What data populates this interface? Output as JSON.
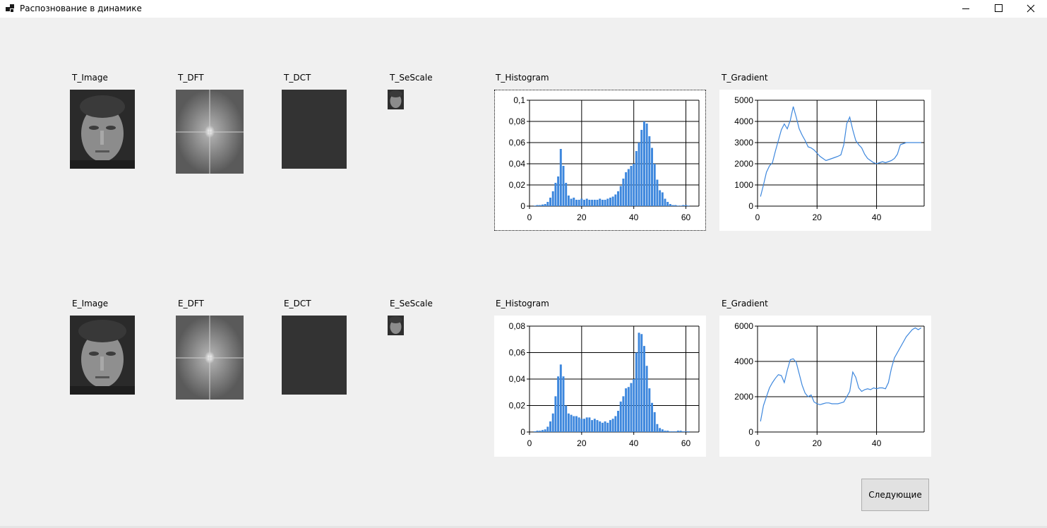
{
  "window": {
    "title": "Распознование в динамике"
  },
  "labels": {
    "t_image": "T_Image",
    "t_dft": "T_DFT",
    "t_dct": "T_DCT",
    "t_sescale": "T_SeScale",
    "t_histogram": "T_Histogram",
    "t_gradient": "T_Gradient",
    "e_image": "E_Image",
    "e_dft": "E_DFT",
    "e_dct": "E_DCT",
    "e_sescale": "E_SeScale",
    "e_histogram": "E_Histogram",
    "e_gradient": "E_Gradient"
  },
  "buttons": {
    "next": "Следующие"
  },
  "colors": {
    "series": "#3d87dd",
    "dct_fill": "#333333",
    "window_bg": "#f0f0f0"
  },
  "chart_data": [
    {
      "id": "t_histogram",
      "type": "bar",
      "xlim": [
        0,
        65
      ],
      "ylim": [
        0,
        0.1
      ],
      "xticks": [
        0,
        20,
        40,
        60
      ],
      "yticks": [
        0,
        0.02,
        0.04,
        0.06,
        0.08,
        0.1
      ],
      "ytick_labels": [
        "0",
        "0,02",
        "0,04",
        "0,06",
        "0,08",
        "0,1"
      ],
      "xtick_labels": [
        "0",
        "20",
        "40",
        "60"
      ],
      "grid": true,
      "x": [
        2,
        3,
        4,
        5,
        6,
        7,
        8,
        9,
        10,
        11,
        12,
        13,
        14,
        15,
        16,
        17,
        18,
        19,
        20,
        21,
        22,
        23,
        24,
        25,
        26,
        27,
        28,
        29,
        30,
        31,
        32,
        33,
        34,
        35,
        36,
        37,
        38,
        39,
        40,
        41,
        42,
        43,
        44,
        45,
        46,
        47,
        48,
        49,
        50,
        51,
        52,
        53,
        54,
        55,
        56,
        57,
        58,
        59,
        60,
        61
      ],
      "values": [
        0.0005,
        0.001,
        0.001,
        0.0015,
        0.002,
        0.004,
        0.008,
        0.014,
        0.022,
        0.028,
        0.054,
        0.038,
        0.022,
        0.01,
        0.007,
        0.008,
        0.006,
        0.006,
        0.007,
        0.006,
        0.007,
        0.006,
        0.006,
        0.006,
        0.006,
        0.007,
        0.006,
        0.006,
        0.007,
        0.008,
        0.009,
        0.011,
        0.014,
        0.019,
        0.026,
        0.032,
        0.035,
        0.038,
        0.04,
        0.052,
        0.06,
        0.072,
        0.08,
        0.078,
        0.066,
        0.055,
        0.04,
        0.025,
        0.015,
        0.013,
        0.007,
        0.004,
        0.002,
        0.001,
        0.001,
        0.0005,
        0.0005,
        0.001,
        0.001,
        0.0005
      ]
    },
    {
      "id": "t_gradient",
      "type": "line",
      "xlim": [
        0,
        56
      ],
      "ylim": [
        0,
        5000
      ],
      "xticks": [
        0,
        20,
        40
      ],
      "yticks": [
        0,
        1000,
        2000,
        3000,
        4000,
        5000
      ],
      "xtick_labels": [
        "0",
        "20",
        "40"
      ],
      "ytick_labels": [
        "0",
        "1000",
        "2000",
        "3000",
        "4000",
        "5000"
      ],
      "grid": true,
      "x": [
        1,
        2,
        3,
        4,
        5,
        6,
        7,
        8,
        9,
        10,
        11,
        12,
        13,
        14,
        15,
        16,
        17,
        18,
        19,
        20,
        21,
        22,
        23,
        24,
        25,
        26,
        27,
        28,
        29,
        30,
        31,
        32,
        33,
        34,
        35,
        36,
        37,
        38,
        39,
        40,
        41,
        42,
        43,
        44,
        45,
        46,
        47,
        48,
        49,
        50,
        51,
        52,
        53,
        54,
        55
      ],
      "values": [
        450,
        1000,
        1600,
        1900,
        2050,
        2600,
        3100,
        3600,
        3880,
        3650,
        4050,
        4700,
        4200,
        3650,
        3350,
        3100,
        2800,
        2750,
        2650,
        2500,
        2350,
        2250,
        2150,
        2200,
        2250,
        2300,
        2350,
        2420,
        2900,
        3900,
        4200,
        3600,
        3100,
        2900,
        2750,
        2450,
        2250,
        2150,
        2050,
        2000,
        2050,
        2100,
        2050,
        2100,
        2150,
        2250,
        2450,
        2900,
        2950,
        3000,
        3000,
        3000,
        3000,
        3000,
        3000
      ]
    },
    {
      "id": "e_histogram",
      "type": "bar",
      "xlim": [
        0,
        65
      ],
      "ylim": [
        0,
        0.08
      ],
      "xticks": [
        0,
        20,
        40,
        60
      ],
      "yticks": [
        0,
        0.02,
        0.04,
        0.06,
        0.08
      ],
      "ytick_labels": [
        "0",
        "0,02",
        "0,04",
        "0,06",
        "0,08"
      ],
      "xtick_labels": [
        "0",
        "20",
        "40",
        "60"
      ],
      "grid": true,
      "x": [
        2,
        3,
        4,
        5,
        6,
        7,
        8,
        9,
        10,
        11,
        12,
        13,
        14,
        15,
        16,
        17,
        18,
        19,
        20,
        21,
        22,
        23,
        24,
        25,
        26,
        27,
        28,
        29,
        30,
        31,
        32,
        33,
        34,
        35,
        36,
        37,
        38,
        39,
        40,
        41,
        42,
        43,
        44,
        45,
        46,
        47,
        48,
        49,
        50,
        51,
        52,
        53,
        54,
        55,
        56,
        57,
        58,
        59,
        60,
        61
      ],
      "values": [
        0.0005,
        0.001,
        0.001,
        0.0015,
        0.002,
        0.004,
        0.008,
        0.014,
        0.027,
        0.042,
        0.051,
        0.042,
        0.02,
        0.014,
        0.013,
        0.012,
        0.012,
        0.011,
        0.01,
        0.01,
        0.011,
        0.011,
        0.009,
        0.01,
        0.009,
        0.008,
        0.007,
        0.008,
        0.007,
        0.009,
        0.01,
        0.012,
        0.016,
        0.023,
        0.027,
        0.033,
        0.034,
        0.037,
        0.04,
        0.06,
        0.075,
        0.074,
        0.065,
        0.05,
        0.033,
        0.022,
        0.015,
        0.006,
        0.003,
        0.002,
        0.001,
        0.001,
        0.0005,
        0.0005,
        0.0005,
        0.001,
        0.001,
        0.0005,
        0.0005,
        0.0005
      ]
    },
    {
      "id": "e_gradient",
      "type": "line",
      "xlim": [
        0,
        56
      ],
      "ylim": [
        0,
        6000
      ],
      "xticks": [
        0,
        20,
        40
      ],
      "yticks": [
        0,
        2000,
        4000,
        6000
      ],
      "xtick_labels": [
        "0",
        "20",
        "40"
      ],
      "ytick_labels": [
        "0",
        "2000",
        "4000",
        "6000"
      ],
      "grid": true,
      "x": [
        1,
        2,
        3,
        4,
        5,
        6,
        7,
        8,
        9,
        10,
        11,
        12,
        13,
        14,
        15,
        16,
        17,
        18,
        19,
        20,
        21,
        22,
        23,
        24,
        25,
        26,
        27,
        28,
        29,
        30,
        31,
        32,
        33,
        34,
        35,
        36,
        37,
        38,
        39,
        40,
        41,
        42,
        43,
        44,
        45,
        46,
        47,
        48,
        49,
        50,
        51,
        52,
        53,
        54,
        55
      ],
      "values": [
        600,
        1500,
        2000,
        2500,
        2800,
        3050,
        3250,
        3200,
        2800,
        3500,
        4100,
        4150,
        3950,
        3300,
        2650,
        2200,
        2000,
        2100,
        1700,
        1600,
        1550,
        1600,
        1650,
        1650,
        1600,
        1600,
        1600,
        1650,
        1700,
        2000,
        2300,
        3400,
        3100,
        2500,
        2300,
        2400,
        2450,
        2400,
        2500,
        2450,
        2500,
        2500,
        2450,
        2800,
        3600,
        4200,
        4500,
        4800,
        5100,
        5400,
        5600,
        5800,
        5900,
        5800,
        5900
      ]
    }
  ]
}
